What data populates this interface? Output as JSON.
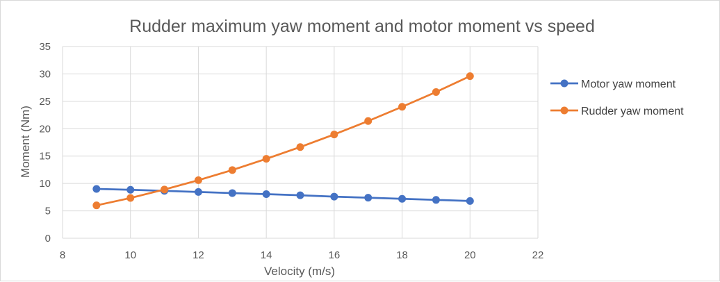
{
  "chart_data": {
    "type": "scatter",
    "title": "Rudder maximum yaw moment and motor moment vs speed",
    "xlabel": "Velocity (m/s)",
    "ylabel": "Moment (Nm)",
    "xlim": [
      8,
      22
    ],
    "ylim": [
      0,
      35
    ],
    "xticks": [
      8,
      10,
      12,
      14,
      16,
      18,
      20,
      22
    ],
    "yticks": [
      0,
      5,
      10,
      15,
      20,
      25,
      30,
      35
    ],
    "grid": true,
    "legend_position": "right",
    "series": [
      {
        "name": "Motor yaw moment",
        "color": "#4472C4",
        "x": [
          9,
          10,
          11,
          12,
          13,
          14,
          15,
          16,
          17,
          18,
          19,
          20
        ],
        "y": [
          9.0,
          8.85,
          8.65,
          8.45,
          8.25,
          8.05,
          7.85,
          7.6,
          7.4,
          7.2,
          7.0,
          6.8
        ]
      },
      {
        "name": "Rudder yaw moment",
        "color": "#ED7D31",
        "x": [
          9,
          10,
          11,
          12,
          13,
          14,
          15,
          16,
          17,
          18,
          19,
          20
        ],
        "y": [
          6.0,
          7.35,
          8.9,
          10.6,
          12.45,
          14.5,
          16.65,
          18.95,
          21.4,
          24.0,
          26.7,
          29.6
        ]
      }
    ]
  }
}
